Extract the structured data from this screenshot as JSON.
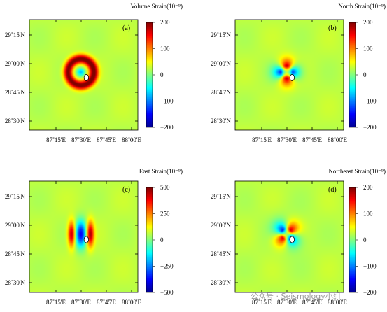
{
  "figure": {
    "watermark": "公众号 · Seismology小组"
  },
  "chart_data": [
    {
      "type": "heatmap",
      "panel_label": "(a)",
      "title": "Volume Strain(10⁻⁹)",
      "field": "volume",
      "x_ticks": [
        "87˚15'E",
        "87˚30'E",
        "87˚45'E",
        "88˚00'E"
      ],
      "y_ticks": [
        "29˚15'N",
        "29˚00'N",
        "28˚45'N",
        "28˚30'N"
      ],
      "colorbar": {
        "min": -200,
        "max": 200,
        "ticks": [
          200,
          100,
          0,
          -100,
          -200
        ]
      },
      "source_marker": "white ellipse at epicenter",
      "pattern": "positive ring (~200) surrounding the epicenter, negative (~-100) center"
    },
    {
      "type": "heatmap",
      "panel_label": "(b)",
      "title": "North Strain(10⁻⁹)",
      "field": "north",
      "x_ticks": [
        "87˚15'E",
        "87˚30'E",
        "87˚45'E",
        "88˚00'E"
      ],
      "y_ticks": [
        "29˚15'N",
        "29˚00'N",
        "28˚45'N",
        "28˚30'N"
      ],
      "colorbar": {
        "min": -200,
        "max": 200,
        "ticks": [
          200,
          100,
          0,
          -100,
          -200
        ]
      },
      "source_marker": "white ellipse at epicenter",
      "pattern": "positive lobes north and south (~200), negative lobes west/east (~-200)"
    },
    {
      "type": "heatmap",
      "panel_label": "(c)",
      "title": "East Strain(10⁻⁹)",
      "field": "east",
      "x_ticks": [
        "87˚15'E",
        "87˚30'E",
        "87˚45'E",
        "88˚00'E"
      ],
      "y_ticks": [
        "29˚15'N",
        "29˚00'N",
        "28˚45'N",
        "28˚30'N"
      ],
      "colorbar": {
        "min": -500,
        "max": 500,
        "ticks": [
          500,
          250,
          0,
          -250,
          -500
        ]
      },
      "source_marker": "white ellipse at epicenter",
      "pattern": "positive lobes west and east (~500), negative center strip (~-500)"
    },
    {
      "type": "heatmap",
      "panel_label": "(d)",
      "title": "Northeast Strain(10⁻⁹)",
      "field": "northeast",
      "x_ticks": [
        "87˚15'E",
        "87˚30'E",
        "87˚45'E",
        "88˚00'E"
      ],
      "y_ticks": [
        "29˚15'N",
        "29˚00'N",
        "28˚45'N",
        "28˚30'N"
      ],
      "colorbar": {
        "min": -200,
        "max": 200,
        "ticks": [
          200,
          100,
          0,
          -100,
          -200
        ]
      },
      "source_marker": "white ellipse at epicenter",
      "pattern": "quadrant pattern: positive NE and SW lobes (~200), negative NW and SE (~-100)"
    }
  ]
}
